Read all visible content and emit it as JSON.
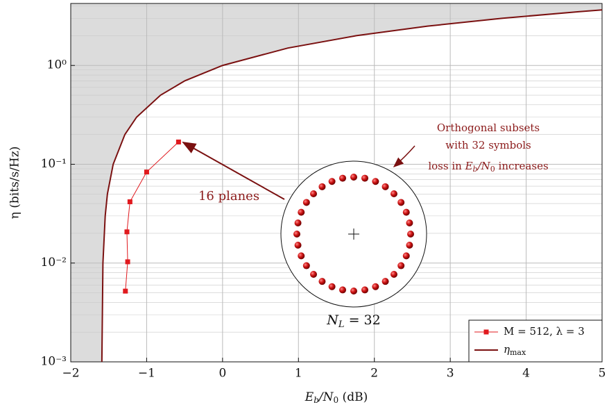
{
  "chart_data": {
    "type": "line",
    "xlabel": [
      "E",
      "b",
      "/N",
      "0",
      " (dB)"
    ],
    "ylabel": "η (bits/s/Hz)",
    "log_y": true,
    "grid": true,
    "xlim": [
      -2,
      5
    ],
    "xticks": [
      {
        "value": -2,
        "label": "−2"
      },
      {
        "value": -1,
        "label": "−1"
      },
      0,
      1,
      2,
      3,
      4,
      5
    ],
    "ylim": [
      0.001,
      4.24
    ],
    "yticks": [
      {
        "value": 0.001,
        "label": "10⁻³"
      },
      {
        "value": 0.01,
        "label": "10⁻²"
      },
      {
        "value": 0.1,
        "label": "10⁻¹"
      },
      {
        "value": 1,
        "label": "10⁰"
      }
    ],
    "y_minor_grid": [
      0.002,
      0.003,
      0.004,
      0.005,
      0.006,
      0.007,
      0.008,
      0.009,
      0.02,
      0.03,
      0.04,
      0.05,
      0.06,
      0.07,
      0.08,
      0.09,
      0.2,
      0.3,
      0.4,
      0.5,
      0.6,
      0.7,
      0.8,
      0.9,
      2,
      3,
      4
    ],
    "legend": "bottom-right",
    "series": [
      {
        "name": "M = 512, λ = 3",
        "color": "#e0191e",
        "marker": "square",
        "x": [
          -1.28,
          -1.25,
          -1.26,
          -1.22,
          -1.0,
          -0.58
        ],
        "values": [
          0.0052,
          0.0103,
          0.0207,
          0.0417,
          0.0835,
          0.168
        ]
      },
      {
        "name": [
          "η",
          "max"
        ],
        "color": "#7a1010",
        "x": [
          -1.59,
          -1.576,
          -1.546,
          -1.517,
          -1.441,
          -1.287,
          -1.132,
          -0.817,
          -0.496,
          0,
          0.86,
          1.761,
          2.7,
          3.68,
          4.69,
          5.0
        ],
        "values": [
          0.001,
          0.01,
          0.03,
          0.05,
          0.1,
          0.2,
          0.3,
          0.5,
          0.7,
          1,
          1.5,
          2,
          2.5,
          3,
          3.5,
          3.65
        ]
      }
    ],
    "annotations": {
      "planes": "16 planes",
      "subsets_1": "Orthogonal subsets",
      "subsets_2": "with 32 symbols",
      "loss": [
        "loss in ",
        "E",
        "b",
        "/N",
        "0",
        " increases"
      ],
      "nl": [
        "N",
        "L",
        " = 32"
      ]
    }
  }
}
